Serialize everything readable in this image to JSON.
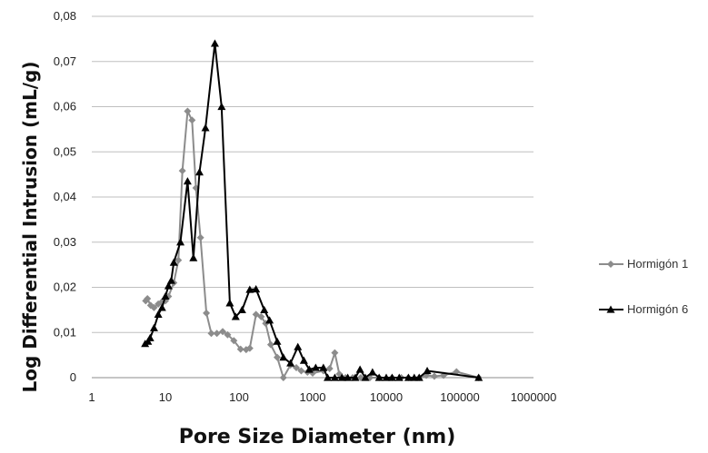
{
  "chart_data": {
    "type": "line",
    "xlabel": "Pore Size Diameter (nm)",
    "ylabel": "Log Differential Intrusion (mL/g)",
    "x_scale": "log",
    "xlim": [
      1,
      1000000
    ],
    "ylim": [
      0,
      0.08
    ],
    "x_ticks": [
      1,
      10,
      100,
      1000,
      10000,
      100000,
      1000000
    ],
    "x_tick_labels": [
      "1",
      "10",
      "100",
      "1000",
      "10000",
      "100000",
      "1000000"
    ],
    "y_ticks": [
      0,
      0.01,
      0.02,
      0.03,
      0.04,
      0.05,
      0.06,
      0.07,
      0.08
    ],
    "y_tick_labels": [
      "0",
      "0,01",
      "0,02",
      "0,03",
      "0,04",
      "0,05",
      "0,06",
      "0,07",
      "0,08"
    ],
    "grid": "horizontal",
    "legend_position": "right",
    "series": [
      {
        "name": "Hormigón 1",
        "color": "#8c8c8c",
        "marker": "diamond",
        "points": [
          [
            5.4,
            0.017
          ],
          [
            5.7,
            0.0175
          ],
          [
            6.3,
            0.016
          ],
          [
            7,
            0.0155
          ],
          [
            8,
            0.0163
          ],
          [
            9,
            0.0168
          ],
          [
            10,
            0.017
          ],
          [
            11,
            0.018
          ],
          [
            13,
            0.021
          ],
          [
            15,
            0.026
          ],
          [
            17,
            0.0458
          ],
          [
            20,
            0.059
          ],
          [
            23,
            0.057
          ],
          [
            26,
            0.042
          ],
          [
            30,
            0.031
          ],
          [
            36,
            0.0143
          ],
          [
            42,
            0.0098
          ],
          [
            50,
            0.0098
          ],
          [
            60,
            0.0102
          ],
          [
            70,
            0.0095
          ],
          [
            85,
            0.0082
          ],
          [
            105,
            0.0063
          ],
          [
            125,
            0.0062
          ],
          [
            140,
            0.0065
          ],
          [
            170,
            0.014
          ],
          [
            200,
            0.0135
          ],
          [
            230,
            0.012
          ],
          [
            270,
            0.0073
          ],
          [
            330,
            0.0045
          ],
          [
            400,
            0.0
          ],
          [
            500,
            0.0028
          ],
          [
            600,
            0.0022
          ],
          [
            700,
            0.0015
          ],
          [
            850,
            0.0012
          ],
          [
            1000,
            0.001
          ],
          [
            1400,
            0.0015
          ],
          [
            1700,
            0.002
          ],
          [
            2000,
            0.0055
          ],
          [
            2300,
            0.0008
          ],
          [
            2800,
            0.0
          ],
          [
            3500,
            0.0
          ],
          [
            4500,
            0.0
          ],
          [
            6000,
            0.0
          ],
          [
            8000,
            0.0
          ],
          [
            12000,
            0.0
          ],
          [
            16000,
            0.0
          ],
          [
            20000,
            0.0
          ],
          [
            28000,
            0.0
          ],
          [
            35000,
            0.0005
          ],
          [
            45000,
            0.0003
          ],
          [
            60000,
            0.0005
          ],
          [
            90000,
            0.0013
          ],
          [
            180000,
            0.0
          ]
        ]
      },
      {
        "name": "Hormigón 6",
        "color": "#000000",
        "marker": "triangle",
        "points": [
          [
            5.3,
            0.0075
          ],
          [
            5.8,
            0.008
          ],
          [
            6.2,
            0.0088
          ],
          [
            7,
            0.011
          ],
          [
            8,
            0.014
          ],
          [
            9,
            0.0155
          ],
          [
            10,
            0.018
          ],
          [
            11,
            0.0203
          ],
          [
            12,
            0.0215
          ],
          [
            13,
            0.0255
          ],
          [
            16,
            0.03
          ],
          [
            20,
            0.0435
          ],
          [
            24,
            0.0265
          ],
          [
            29,
            0.0455
          ],
          [
            35,
            0.0553
          ],
          [
            47,
            0.074
          ],
          [
            58,
            0.06
          ],
          [
            75,
            0.0165
          ],
          [
            90,
            0.0135
          ],
          [
            110,
            0.015
          ],
          [
            140,
            0.0195
          ],
          [
            170,
            0.0196
          ],
          [
            220,
            0.015
          ],
          [
            260,
            0.0127
          ],
          [
            330,
            0.008
          ],
          [
            400,
            0.0045
          ],
          [
            500,
            0.0032
          ],
          [
            630,
            0.0068
          ],
          [
            760,
            0.0038
          ],
          [
            900,
            0.0018
          ],
          [
            1100,
            0.0022
          ],
          [
            1400,
            0.0022
          ],
          [
            1600,
            0.0
          ],
          [
            2000,
            0.0
          ],
          [
            2500,
            0.0
          ],
          [
            3000,
            0.0
          ],
          [
            3800,
            0.0
          ],
          [
            4400,
            0.0018
          ],
          [
            5200,
            0.0
          ],
          [
            6500,
            0.0012
          ],
          [
            8000,
            0.0
          ],
          [
            10000,
            0.0
          ],
          [
            12000,
            0.0
          ],
          [
            15000,
            0.0
          ],
          [
            20000,
            0.0
          ],
          [
            24000,
            0.0
          ],
          [
            28000,
            0.0
          ],
          [
            36000,
            0.0015
          ],
          [
            180000,
            0.0
          ]
        ]
      }
    ]
  }
}
